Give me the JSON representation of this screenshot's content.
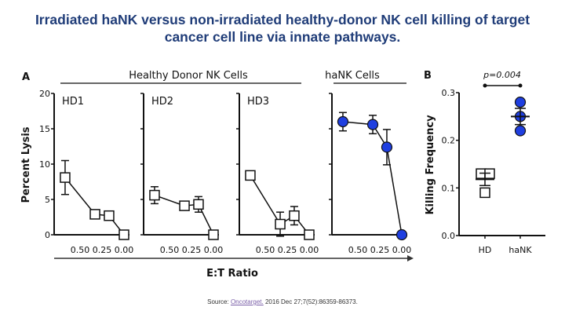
{
  "slide": {
    "title_line1": "Irradiated haNK versus non-irradiated healthy-donor NK cell killing of target",
    "title_line2": "cancer cell line via innate pathways.",
    "source_prefix": "Source:",
    "source_link": "Oncotarget.",
    "source_rest": "2016 Dec 27;7(52):86359-86373.",
    "title_color": "#1f3c78"
  },
  "chart_data": [
    {
      "type": "line",
      "panel_label": "A",
      "group_labels": [
        "Healthy Donor NK Cells",
        "haNK Cells"
      ],
      "xlabel": "E:T Ratio",
      "ylabel": "Percent Lysis",
      "ylim": [
        0,
        20
      ],
      "yticks": [
        "0",
        "5",
        "10",
        "15",
        "20"
      ],
      "xticks": [
        "0.50",
        "0.25",
        "0.00"
      ],
      "x_reversed": true,
      "x": [
        0.67,
        0.33,
        0.17,
        0.0
      ],
      "series": [
        {
          "name": "HD1",
          "marker": "open-square",
          "color": "#ffffff",
          "values": [
            8.1,
            2.9,
            2.7,
            0.0
          ],
          "err": [
            2.4,
            0,
            0,
            0
          ]
        },
        {
          "name": "HD2",
          "marker": "open-square",
          "color": "#ffffff",
          "values": [
            5.6,
            4.1,
            4.3,
            0.0
          ],
          "err": [
            1.2,
            0,
            1.1,
            0
          ]
        },
        {
          "name": "HD3",
          "marker": "open-square",
          "color": "#ffffff",
          "values": [
            8.4,
            1.5,
            2.7,
            0.0
          ],
          "err": [
            0,
            1.7,
            1.3,
            0
          ]
        },
        {
          "name": "haNK",
          "marker": "filled-circle",
          "color": "#1f3fe0",
          "values": [
            16.0,
            15.6,
            12.4,
            0.0
          ],
          "err": [
            1.3,
            1.3,
            2.5,
            0
          ]
        }
      ]
    },
    {
      "type": "scatter",
      "panel_label": "B",
      "ylabel": "Killing Frequency",
      "ylim": [
        0,
        0.3
      ],
      "yticks": [
        "0.0",
        "0.1",
        "0.2",
        "0.3"
      ],
      "categories": [
        "HD",
        "haNK"
      ],
      "annotation": "p=0.004",
      "groups": [
        {
          "name": "HD",
          "points": [
            0.13,
            0.13,
            0.09
          ],
          "mean": 0.118,
          "sem": 0.013,
          "marker": "open-square",
          "color": "#ffffff"
        },
        {
          "name": "haNK",
          "points": [
            0.28,
            0.25,
            0.22
          ],
          "mean": 0.25,
          "sem": 0.017,
          "marker": "filled-circle",
          "color": "#1f3fe0"
        }
      ]
    }
  ]
}
